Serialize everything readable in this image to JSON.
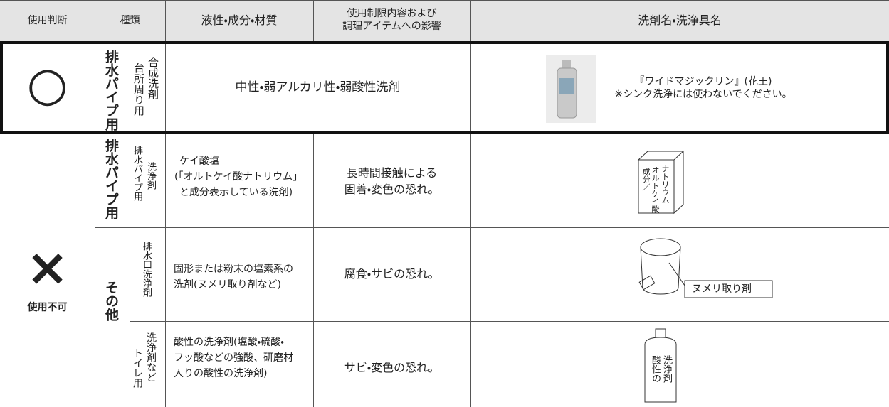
{
  "header": {
    "judgment": "使用判断",
    "type": "種類",
    "property": "液性・成分・材質",
    "restriction": [
      "使用制限内容および",
      "調理アイテムへの影響"
    ],
    "product": "洗剤名・洗浄具名"
  },
  "ok": {
    "judgment": "○",
    "category": "排水パイプ用",
    "subtype": [
      "台所周り用",
      "合成洗剤"
    ],
    "property": "中性・弱アルカリ性・弱酸性洗剤",
    "product": [
      "『ワイドマジックリン』(花王)",
      "※シンク洗浄には使わないでください。"
    ]
  },
  "ng": {
    "judgment": "×",
    "judgment_label": "使用不可",
    "rows": [
      {
        "category": "排水パイプ用",
        "subtype": [
          "排水パイプ用",
          "洗浄剤"
        ],
        "property": [
          "ケイ酸塩",
          "(「オルトケイ酸ナトリウム」",
          "と成分表示している洗剤)"
        ],
        "restriction": [
          "長時間接触による",
          "固着・変色の恐れ。"
        ],
        "illustration": [
          "成分／",
          "オルトケイ酸",
          "ナトリウム"
        ]
      },
      {
        "category": "その他",
        "subtype": [
          "排水口洗浄剤"
        ],
        "property": [
          "固形または粉末の塩素系の",
          "洗剤(ヌメリ取り剤など)"
        ],
        "restriction": [
          "腐食・サビの恐れ。"
        ],
        "illustration": [
          "ヌメリ取り剤"
        ]
      },
      {
        "subtype": [
          "トイレ用",
          "洗浄剤など"
        ],
        "property": [
          "酸性の洗浄剤(塩酸・硫酸・",
          "フッ酸などの強酸、研磨材",
          "入りの酸性の洗浄剤)"
        ],
        "restriction": [
          "サビ・変色の恐れ。"
        ],
        "illustration": [
          "酸性の",
          "洗浄剤"
        ]
      }
    ]
  }
}
